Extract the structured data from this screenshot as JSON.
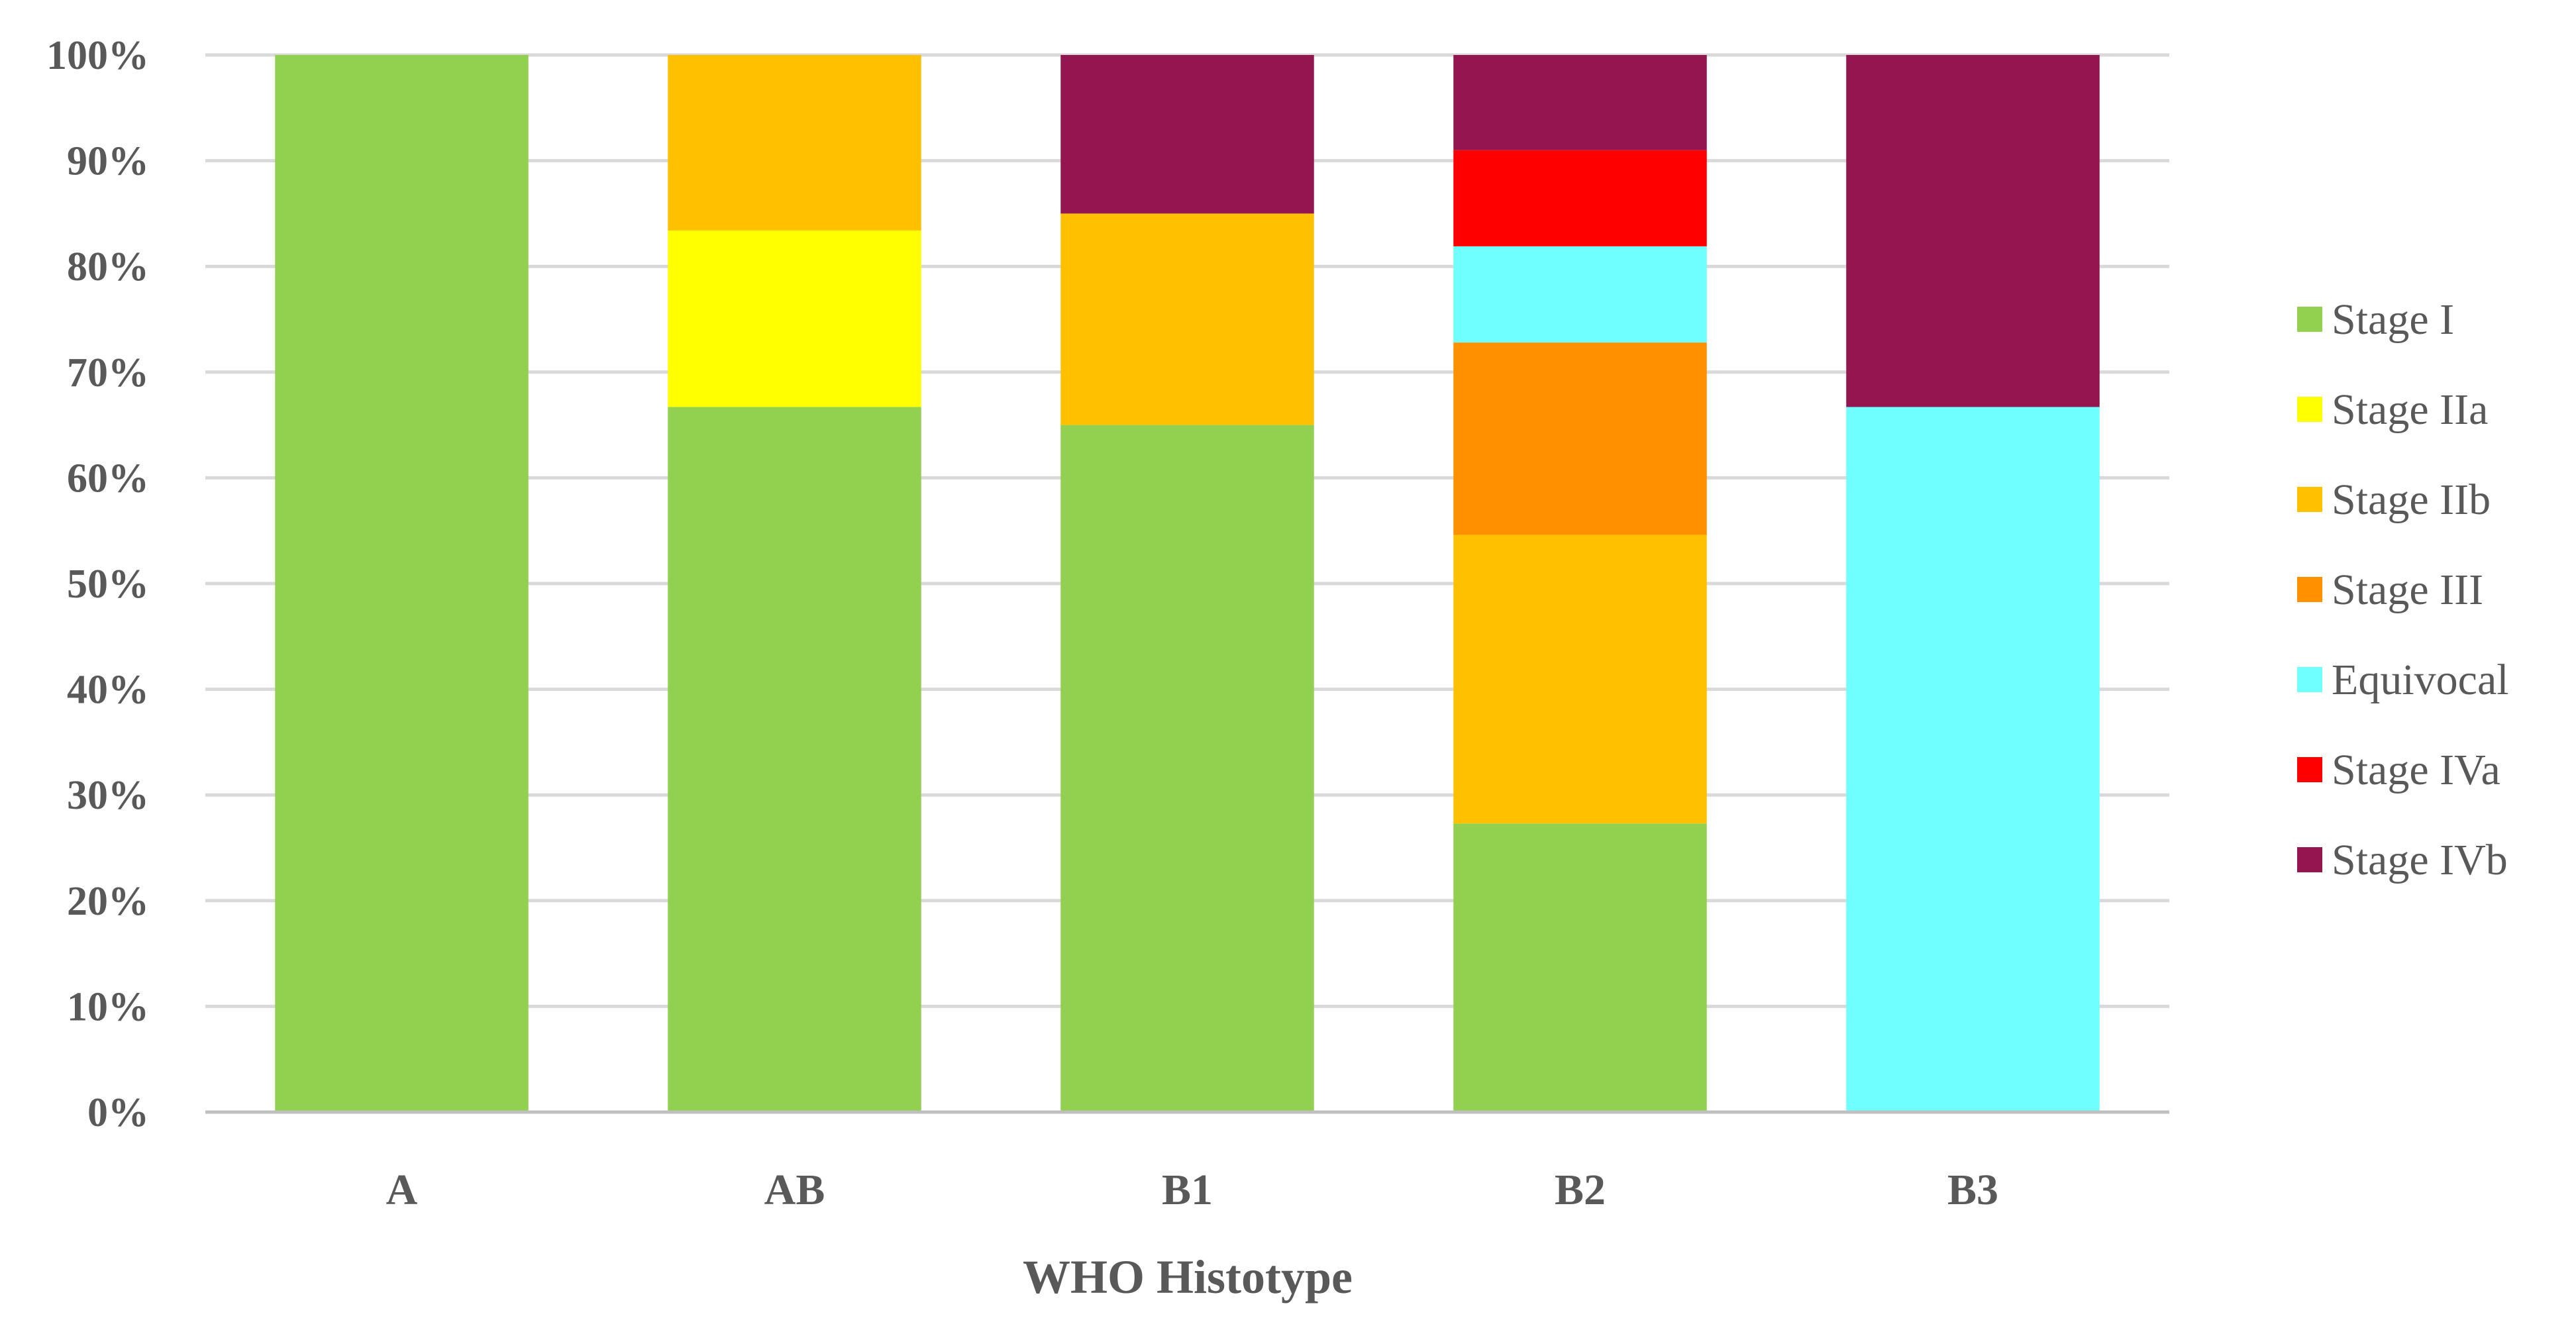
{
  "chart_data": {
    "type": "bar",
    "stacked": true,
    "normalized": true,
    "title": "",
    "xlabel": "WHO Histotype",
    "ylabel": "",
    "categories": [
      "A",
      "AB",
      "B1",
      "B2",
      "B3"
    ],
    "ylim": [
      0,
      100
    ],
    "y_ticks": [
      "0%",
      "10%",
      "20%",
      "30%",
      "40%",
      "50%",
      "60%",
      "70%",
      "80%",
      "90%",
      "100%"
    ],
    "y_tick_values": [
      0,
      10,
      20,
      30,
      40,
      50,
      60,
      70,
      80,
      90,
      100
    ],
    "grid": true,
    "legend_position": "right",
    "series": [
      {
        "name": "Stage I",
        "color": "#92D050",
        "values": [
          100,
          66.7,
          65,
          27.3,
          0
        ]
      },
      {
        "name": "Stage IIa",
        "color": "#FFFF00",
        "values": [
          0,
          16.7,
          0,
          0,
          0
        ]
      },
      {
        "name": "Stage IIb",
        "color": "#FFC000",
        "values": [
          0,
          16.6,
          20,
          27.3,
          0
        ]
      },
      {
        "name": "Stage III",
        "color": "#FF9100",
        "values": [
          0,
          0,
          0,
          18.2,
          0
        ]
      },
      {
        "name": "Equivocal",
        "color": "#6FFFFF",
        "values": [
          0,
          0,
          0,
          9.1,
          66.7
        ]
      },
      {
        "name": "Stage IVa",
        "color": "#FF0000",
        "values": [
          0,
          0,
          0,
          9.1,
          0
        ]
      },
      {
        "name": "Stage IVb",
        "color": "#941651",
        "values": [
          0,
          0,
          15,
          9.0,
          33.3
        ]
      }
    ]
  }
}
